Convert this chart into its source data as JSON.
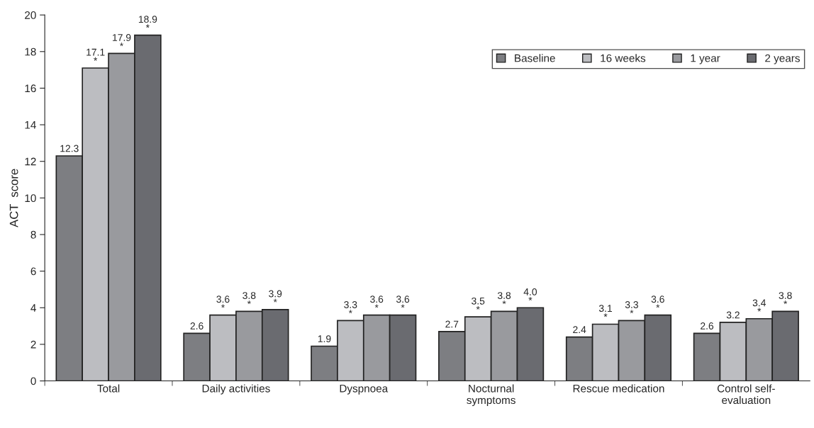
{
  "chart_data": {
    "type": "bar",
    "ylabel": "ACT  score",
    "categories": [
      "Total",
      "Daily activities",
      "Dyspnoea",
      "Nocturnal\nsymptoms",
      "Rescue medication",
      "Control self-\nevaluation"
    ],
    "series": [
      {
        "name": "Baseline",
        "color": "#7d7e82",
        "values": [
          12.3,
          2.6,
          1.9,
          2.7,
          2.4,
          2.6
        ],
        "value_labels": [
          "12.3",
          "2.6",
          "1.9",
          "2.7",
          "2.4",
          "2.6"
        ]
      },
      {
        "name": "16 weeks",
        "color": "#bcbdc1",
        "values": [
          17.1,
          3.6,
          3.3,
          3.5,
          3.1,
          3.2
        ],
        "value_labels": [
          "17.1\n*",
          "3.6\n*",
          "3.3\n*",
          "3.5\n*",
          "3.1\n*",
          "3.2"
        ]
      },
      {
        "name": "1 year",
        "color": "#999a9e",
        "values": [
          17.9,
          3.8,
          3.6,
          3.8,
          3.3,
          3.4
        ],
        "value_labels": [
          "17.9\n*",
          "3.8\n*",
          "3.6\n*",
          "3.8\n*",
          "3.3\n*",
          "3.4\n*"
        ]
      },
      {
        "name": "2 years",
        "color": "#6a6b70",
        "values": [
          18.9,
          3.9,
          3.6,
          4.0,
          3.6,
          3.8
        ],
        "value_labels": [
          "18.9\n*",
          "3.9\n*",
          "3.6\n*",
          "4.0\n*",
          "3.6\n*",
          "3.8\n*"
        ]
      }
    ],
    "ylim": [
      0,
      20
    ],
    "yticks": [
      0,
      2,
      4,
      6,
      8,
      10,
      12,
      14,
      16,
      18,
      20
    ],
    "grid": false,
    "legend": "top right"
  }
}
